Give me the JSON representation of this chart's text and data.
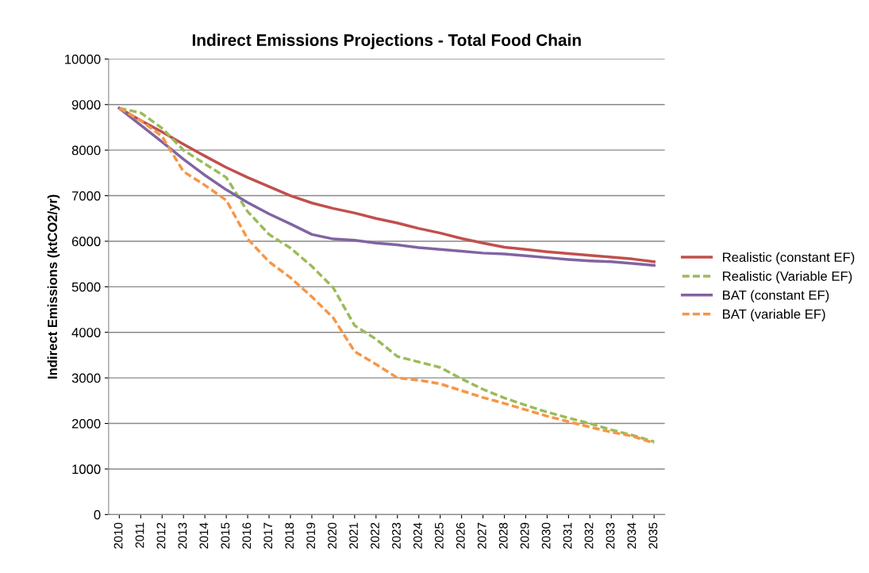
{
  "chart_data": {
    "type": "line",
    "title": "Indirect Emissions Projections - Total Food Chain",
    "ylabel": "Indirect Emissions (ktCO2/yr)",
    "categories": [
      "2010",
      "2011",
      "2012",
      "2013",
      "2014",
      "2015",
      "2016",
      "2017",
      "2018",
      "2019",
      "2020",
      "2021",
      "2022",
      "2023",
      "2024",
      "2025",
      "2026",
      "2027",
      "2028",
      "2029",
      "2030",
      "2031",
      "2032",
      "2033",
      "2034",
      "2035"
    ],
    "series": [
      {
        "name": "Realistic (constant EF)",
        "color": "#c0504d",
        "line_style": "solid",
        "values": [
          8920,
          8650,
          8400,
          8130,
          7870,
          7620,
          7400,
          7200,
          7000,
          6840,
          6720,
          6620,
          6500,
          6400,
          6280,
          6180,
          6060,
          5960,
          5870,
          5820,
          5770,
          5730,
          5690,
          5650,
          5610,
          5550
        ]
      },
      {
        "name": "Realistic (Variable EF)",
        "color": "#9bbb59",
        "line_style": "dashed",
        "values": [
          8920,
          8820,
          8480,
          8000,
          7700,
          7400,
          6650,
          6150,
          5850,
          5450,
          4980,
          4150,
          3850,
          3470,
          3350,
          3230,
          2980,
          2750,
          2560,
          2400,
          2250,
          2120,
          2000,
          1860,
          1740,
          1600
        ]
      },
      {
        "name": "BAT (constant EF)",
        "color": "#8064a2",
        "line_style": "solid",
        "values": [
          8920,
          8550,
          8180,
          7800,
          7450,
          7130,
          6850,
          6600,
          6380,
          6150,
          6050,
          6020,
          5960,
          5920,
          5860,
          5820,
          5780,
          5740,
          5720,
          5680,
          5640,
          5600,
          5570,
          5550,
          5510,
          5470
        ]
      },
      {
        "name": "BAT (variable EF)",
        "color": "#f79646",
        "line_style": "dashed",
        "values": [
          8920,
          8650,
          8300,
          7530,
          7230,
          6900,
          6050,
          5550,
          5200,
          4780,
          4320,
          3580,
          3300,
          3000,
          2950,
          2870,
          2720,
          2570,
          2440,
          2300,
          2160,
          2040,
          1920,
          1810,
          1720,
          1570
        ]
      }
    ],
    "ylim": [
      0,
      10000
    ],
    "yticks": [
      0,
      1000,
      2000,
      3000,
      4000,
      5000,
      6000,
      7000,
      8000,
      9000,
      10000
    ],
    "grid": "y",
    "legend": "right",
    "marker": "none"
  }
}
